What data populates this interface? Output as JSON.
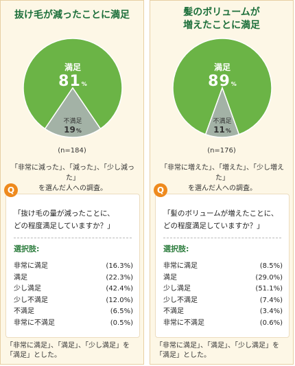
{
  "chart_data": [
    {
      "type": "pie",
      "title": "抜け毛が減ったことに満足",
      "slices": [
        {
          "label": "満足",
          "value": 81,
          "color": "#6bb446"
        },
        {
          "label": "不満足",
          "value": 19,
          "color": "#a3b2a6"
        }
      ],
      "value_suffix": "%",
      "n_label": "(n=184)",
      "respondents_note": "「非常に減った」、「減った」、「少し減った」\nを選んだ人への調査。",
      "question": "「抜け毛の量が減ったことに、\nどの程度満足していますか？」",
      "options_heading": "選択肢:",
      "options": [
        {
          "label": "非常に満足",
          "value": "(16.3%)"
        },
        {
          "label": "満足",
          "value": "(22.3%)"
        },
        {
          "label": "少し満足",
          "value": "(42.4%)"
        },
        {
          "label": "少し不満足",
          "value": "(12.0%)"
        },
        {
          "label": "不満足",
          "value": "(6.5%)"
        },
        {
          "label": "非常に不満足",
          "value": "(0.5%)"
        }
      ],
      "footnote": "「非常に満足」、「満足」、「少し満足」を\n「満足」とした。"
    },
    {
      "type": "pie",
      "title": "髪のボリュームが\n増えたことに満足",
      "slices": [
        {
          "label": "満足",
          "value": 89,
          "color": "#6bb446"
        },
        {
          "label": "不満足",
          "value": 11,
          "color": "#a3b2a6"
        }
      ],
      "value_suffix": "%",
      "n_label": "(n=176)",
      "respondents_note": "「非常に増えた」、「増えた」、「少し増えた」\nを選んだ人への調査。",
      "question": "「髪のボリュームが増えたことに、\nどの程度満足していますか？」",
      "options_heading": "選択肢:",
      "options": [
        {
          "label": "非常に満足",
          "value": "(8.5%)"
        },
        {
          "label": "満足",
          "value": "(29.0%)"
        },
        {
          "label": "少し満足",
          "value": "(51.1%)"
        },
        {
          "label": "少し不満足",
          "value": "(7.4%)"
        },
        {
          "label": "不満足",
          "value": "(3.4%)"
        },
        {
          "label": "非常に不満足",
          "value": "(0.6%)"
        }
      ],
      "footnote": "「非常に満足」、「満足」、「少し満足」を\n「満足」とした。"
    }
  ],
  "q_icon": "Q"
}
